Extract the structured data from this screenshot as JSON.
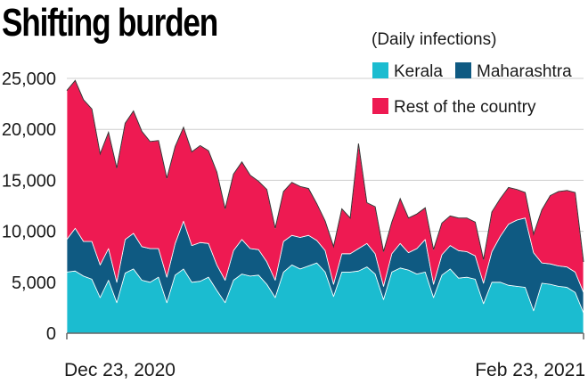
{
  "chart_data": {
    "type": "area",
    "stacked": true,
    "title": "Shifting burden",
    "legend_title": "(Daily infections)",
    "legend_position": "top-right",
    "ylim": [
      0,
      25000
    ],
    "y_ticks": [
      0,
      5000,
      10000,
      15000,
      20000,
      25000
    ],
    "y_tick_labels": [
      "0",
      "5,000",
      "10,000",
      "15,000",
      "20,000",
      "25,000"
    ],
    "x_start_label": "Dec 23, 2020",
    "x_end_label": "Feb 23, 2021",
    "x": [
      "2020-12-23",
      "2020-12-24",
      "2020-12-25",
      "2020-12-26",
      "2020-12-27",
      "2020-12-28",
      "2020-12-29",
      "2020-12-30",
      "2020-12-31",
      "2021-01-01",
      "2021-01-02",
      "2021-01-03",
      "2021-01-04",
      "2021-01-05",
      "2021-01-06",
      "2021-01-07",
      "2021-01-08",
      "2021-01-09",
      "2021-01-10",
      "2021-01-11",
      "2021-01-12",
      "2021-01-13",
      "2021-01-14",
      "2021-01-15",
      "2021-01-16",
      "2021-01-17",
      "2021-01-18",
      "2021-01-19",
      "2021-01-20",
      "2021-01-21",
      "2021-01-22",
      "2021-01-23",
      "2021-01-24",
      "2021-01-25",
      "2021-01-26",
      "2021-01-27",
      "2021-01-28",
      "2021-01-29",
      "2021-01-30",
      "2021-01-31",
      "2021-02-01",
      "2021-02-02",
      "2021-02-03",
      "2021-02-04",
      "2021-02-05",
      "2021-02-06",
      "2021-02-07",
      "2021-02-08",
      "2021-02-09",
      "2021-02-10",
      "2021-02-11",
      "2021-02-12",
      "2021-02-13",
      "2021-02-14",
      "2021-02-15",
      "2021-02-16",
      "2021-02-17",
      "2021-02-18",
      "2021-02-19",
      "2021-02-20",
      "2021-02-21",
      "2021-02-22",
      "2021-02-23"
    ],
    "series": [
      {
        "name": "Kerala",
        "color": "#1bbcd0",
        "values": [
          6000,
          6100,
          5600,
          5300,
          3500,
          5200,
          3000,
          5900,
          6300,
          5200,
          5000,
          5500,
          3000,
          5700,
          6300,
          5000,
          5100,
          5500,
          4200,
          3000,
          5200,
          5800,
          5600,
          5700,
          4800,
          3500,
          6000,
          6700,
          6300,
          6600,
          6900,
          6000,
          3600,
          6000,
          6000,
          6100,
          6500,
          5800,
          3300,
          6000,
          6400,
          6200,
          5800,
          6000,
          3500,
          5700,
          6300,
          5400,
          5500,
          5300,
          2900,
          5000,
          5000,
          4700,
          4600,
          4500,
          2200,
          4900,
          4800,
          4600,
          4500,
          4000,
          2000
        ]
      },
      {
        "name": "Maharashtra",
        "color": "#0f5a82",
        "values": [
          3200,
          4200,
          3400,
          3700,
          3200,
          3100,
          2000,
          3300,
          3500,
          3300,
          3300,
          2800,
          2500,
          3100,
          4700,
          3600,
          3800,
          3300,
          2500,
          2200,
          2900,
          3400,
          2700,
          2500,
          2200,
          1700,
          3000,
          2900,
          3100,
          3000,
          2200,
          2100,
          1200,
          1800,
          1800,
          2200,
          2300,
          2000,
          1300,
          1800,
          2400,
          1700,
          2500,
          3200,
          1300,
          2000,
          2300,
          2700,
          2500,
          2300,
          2000,
          3000,
          4500,
          6000,
          6500,
          6800,
          5700,
          2000,
          2000,
          2000,
          2000,
          2000,
          2000
        ]
      },
      {
        "name": "Rest of the country",
        "color": "#ee1a52",
        "values": [
          14600,
          14500,
          13900,
          13000,
          10900,
          11400,
          11200,
          11400,
          12000,
          11300,
          10500,
          10600,
          9700,
          9500,
          9200,
          9200,
          9500,
          9100,
          9100,
          7000,
          7500,
          7600,
          7200,
          6700,
          7100,
          5100,
          4900,
          5200,
          5000,
          4600,
          3600,
          2900,
          3700,
          4400,
          3500,
          10300,
          4000,
          4600,
          3400,
          3100,
          4400,
          3400,
          3400,
          3100,
          3400,
          3100,
          2900,
          3200,
          3300,
          3300,
          2300,
          3900,
          3700,
          3600,
          3000,
          2500,
          1800,
          5200,
          6700,
          7300,
          7500,
          7800,
          3000
        ]
      }
    ]
  }
}
